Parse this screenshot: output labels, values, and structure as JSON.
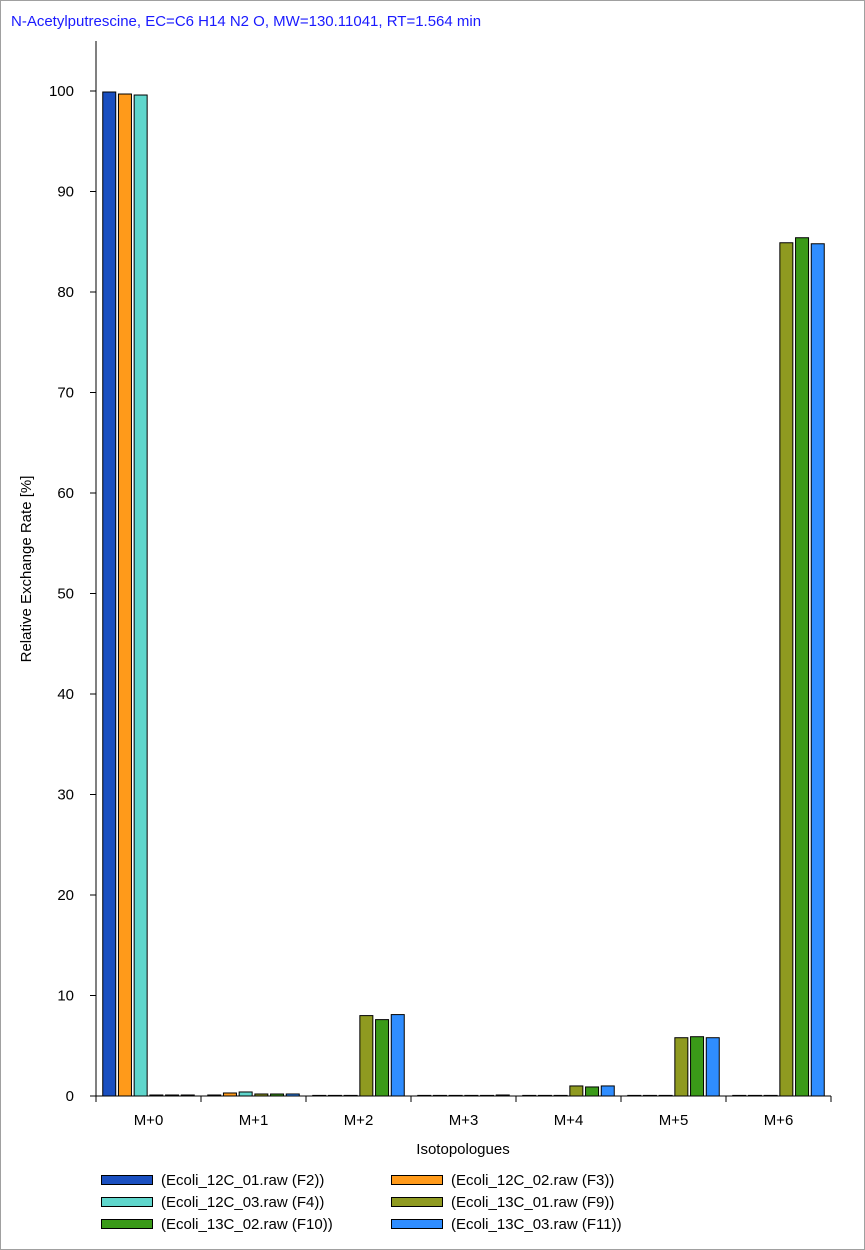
{
  "chart_data": {
    "type": "bar",
    "title": "N-Acetylputrescine, EC=C6 H14 N2 O, MW=130.11041, RT=1.564 min",
    "xlabel": "Isotopologues",
    "ylabel": "Relative Exchange Rate [%]",
    "ylim": [
      0,
      105
    ],
    "yticks": [
      0,
      10,
      20,
      30,
      40,
      50,
      60,
      70,
      80,
      90,
      100
    ],
    "grid": false,
    "legend_position": "bottom",
    "categories": [
      "M+0",
      "M+1",
      "M+2",
      "M+3",
      "M+4",
      "M+5",
      "M+6"
    ],
    "series": [
      {
        "name": "(Ecoli_12C_01.raw (F2))",
        "color": "#1a4fc0",
        "values": [
          99.9,
          0.1,
          0.0,
          0.0,
          0.0,
          0.0,
          0.0
        ]
      },
      {
        "name": "(Ecoli_12C_02.raw (F3))",
        "color": "#ff9a1a",
        "values": [
          99.7,
          0.3,
          0.0,
          0.0,
          0.0,
          0.0,
          0.0
        ]
      },
      {
        "name": "(Ecoli_12C_03.raw (F4))",
        "color": "#5fd6cc",
        "values": [
          99.6,
          0.4,
          0.0,
          0.0,
          0.0,
          0.0,
          0.0
        ]
      },
      {
        "name": "(Ecoli_13C_01.raw (F9))",
        "color": "#8f9a20",
        "values": [
          0.1,
          0.2,
          8.0,
          0.0,
          1.0,
          5.8,
          84.9
        ]
      },
      {
        "name": "(Ecoli_13C_02.raw (F10))",
        "color": "#3a9a18",
        "values": [
          0.1,
          0.2,
          7.6,
          0.0,
          0.9,
          5.9,
          85.4
        ]
      },
      {
        "name": "(Ecoli_13C_03.raw (F11))",
        "color": "#2f8dff",
        "values": [
          0.1,
          0.2,
          8.1,
          0.1,
          1.0,
          5.8,
          84.8
        ]
      }
    ]
  }
}
